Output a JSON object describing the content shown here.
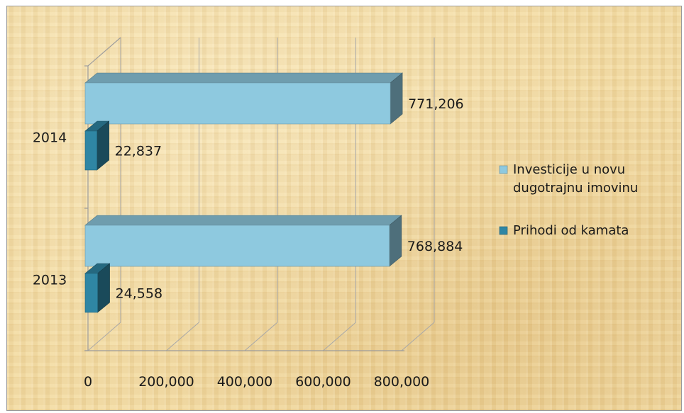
{
  "chart_data": {
    "type": "bar",
    "orientation": "horizontal",
    "style": "3d-clustered",
    "categories": [
      "2014",
      "2013"
    ],
    "series": [
      {
        "name": "Investicije u novu dugotrajnu imovinu",
        "values": [
          771206,
          768884
        ],
        "labels": [
          "771,206",
          "768,884"
        ],
        "color": "#8ec9df"
      },
      {
        "name": "Prihodi od kamata",
        "values": [
          22837,
          24558
        ],
        "labels": [
          "22,837",
          "24,558"
        ],
        "color": "#2f86a4"
      }
    ],
    "xlim": [
      0,
      800000
    ],
    "xticks": [
      "0",
      "200,000",
      "400,000",
      "600,000",
      "800,000"
    ],
    "grid": true,
    "legend_position": "right",
    "legend_lines": [
      [
        "Investicije u novu",
        "dugotrajnu imovinu"
      ],
      [
        "Prihodi od kamata"
      ]
    ]
  }
}
